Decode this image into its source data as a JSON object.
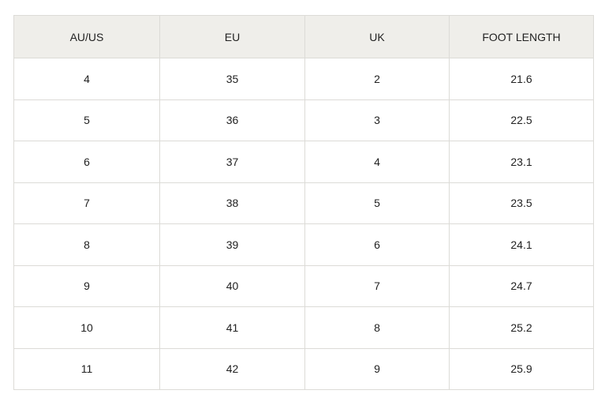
{
  "table": {
    "header": [
      "AU/US",
      "EU",
      "UK",
      "FOOT LENGTH"
    ],
    "rows": [
      [
        "4",
        "35",
        "2",
        "21.6"
      ],
      [
        "5",
        "36",
        "3",
        "22.5"
      ],
      [
        "6",
        "37",
        "4",
        "23.1"
      ],
      [
        "7",
        "38",
        "5",
        "23.5"
      ],
      [
        "8",
        "39",
        "6",
        "24.1"
      ],
      [
        "9",
        "40",
        "7",
        "24.7"
      ],
      [
        "10",
        "41",
        "8",
        "25.2"
      ],
      [
        "11",
        "42",
        "9",
        "25.9"
      ]
    ]
  }
}
